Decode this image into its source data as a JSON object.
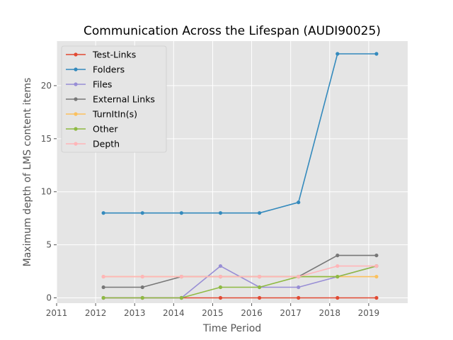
{
  "chart_data": {
    "type": "line",
    "title": "Communication Across the Lifespan (AUDI90025)",
    "xlabel": "Time Period",
    "ylabel": "Maximum depth of LMS content items",
    "x": [
      2012.2,
      2013.2,
      2014.2,
      2015.2,
      2016.2,
      2017.2,
      2018.2,
      2019.2
    ],
    "xlim": [
      2011,
      2020
    ],
    "ylim": [
      -0.5,
      24.2
    ],
    "xticks": [
      2011,
      2012,
      2013,
      2014,
      2015,
      2016,
      2017,
      2018,
      2019
    ],
    "yticks": [
      0,
      5,
      10,
      15,
      20
    ],
    "grid": true,
    "legend_position": "upper-left",
    "series": [
      {
        "name": "Test-Links",
        "color": "#E24A33",
        "values": [
          0,
          0,
          0,
          0,
          0,
          0,
          0,
          0
        ]
      },
      {
        "name": "Folders",
        "color": "#348ABD",
        "values": [
          8,
          8,
          8,
          8,
          8,
          9,
          23,
          23
        ]
      },
      {
        "name": "Files",
        "color": "#988ED5",
        "values": [
          0,
          0,
          0,
          3,
          1,
          1,
          2,
          3
        ]
      },
      {
        "name": "External Links",
        "color": "#777777",
        "values": [
          1,
          1,
          2,
          2,
          2,
          2,
          4,
          4
        ]
      },
      {
        "name": "TurnItIn(s)",
        "color": "#FBC15E",
        "values": [
          2,
          2,
          2,
          2,
          2,
          2,
          2,
          2
        ]
      },
      {
        "name": "Other",
        "color": "#8EBA42",
        "values": [
          0,
          0,
          0,
          1,
          1,
          2,
          2,
          3
        ]
      },
      {
        "name": "Depth",
        "color": "#FFB5B8",
        "values": [
          2,
          2,
          2,
          2,
          2,
          2,
          3,
          3
        ]
      }
    ]
  }
}
